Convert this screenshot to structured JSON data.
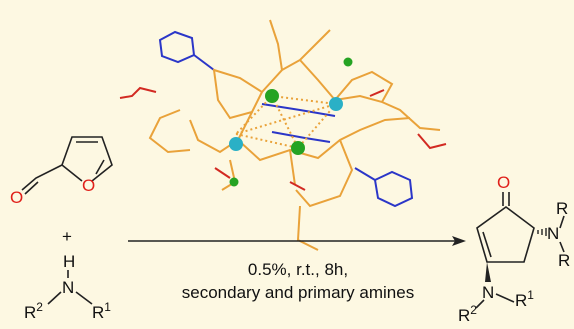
{
  "reaction": {
    "reactant1": {
      "carbonyl_o": "O",
      "ring_o": "O"
    },
    "plus": "+",
    "reactant2": {
      "h": "H",
      "n": "N",
      "r_left": "R",
      "r_left_sup": "2",
      "r_right": "R",
      "r_right_sup": "1"
    },
    "conditions": [
      "0.5%, r.t., 8h,",
      "secondary and primary amines"
    ],
    "product": {
      "o": "O",
      "n_top": "N",
      "r_top": "R",
      "r_mid": "R",
      "n_bottom": "N",
      "r_bottom_right": "R",
      "r_bottom_right_sup": "1",
      "r_bottom_left": "R",
      "r_bottom_left_sup": "2"
    }
  }
}
